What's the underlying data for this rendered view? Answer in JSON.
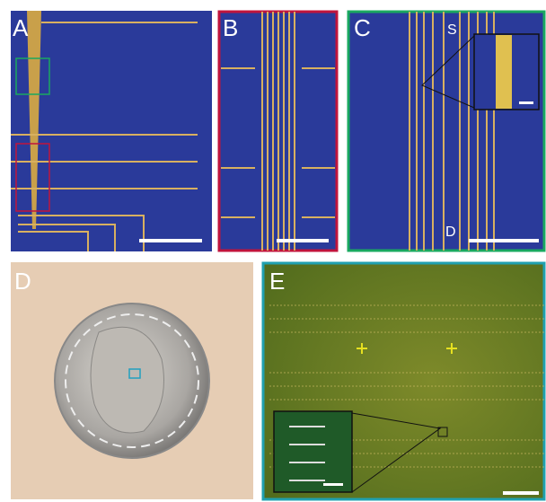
{
  "panels": [
    {
      "label": "A"
    },
    {
      "label": "B"
    },
    {
      "label": "C",
      "annotations": [
        "S",
        "D"
      ]
    },
    {
      "label": "D"
    },
    {
      "label": "E"
    }
  ]
}
